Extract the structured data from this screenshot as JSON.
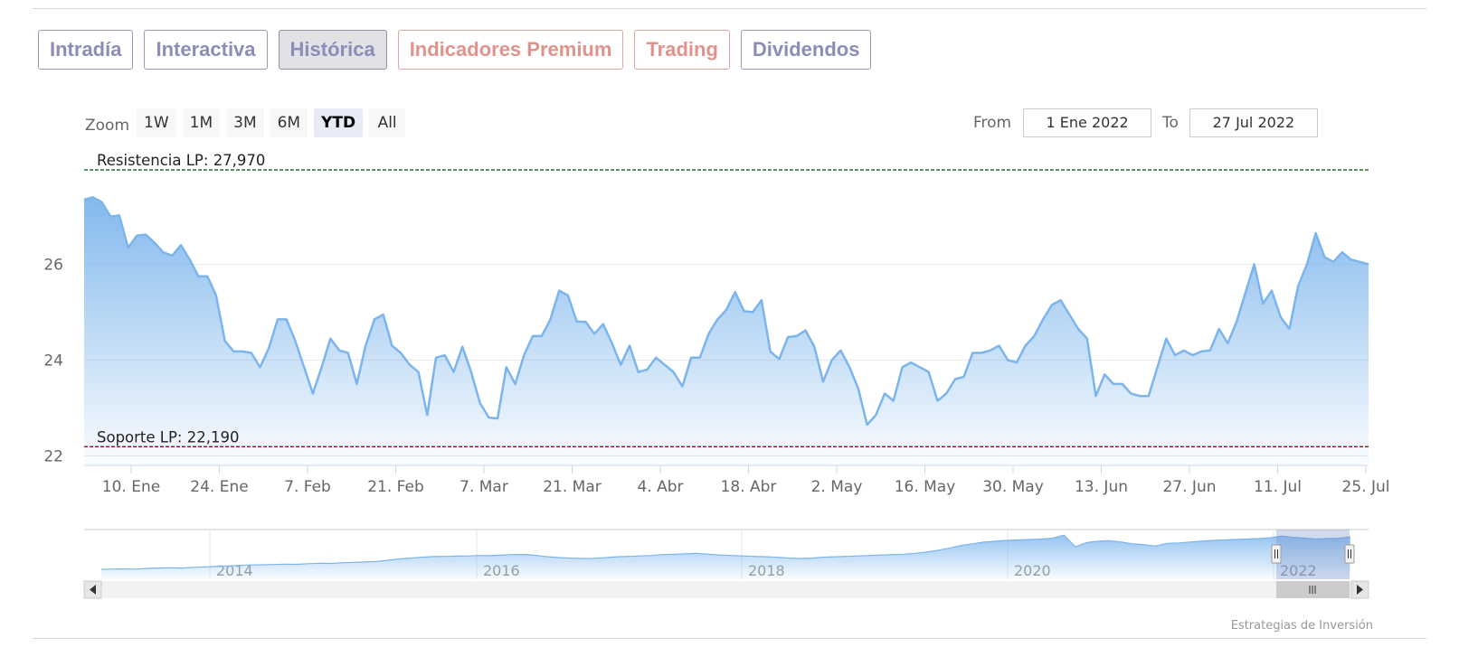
{
  "tabs": [
    {
      "label": "Intradía",
      "tone": "purple"
    },
    {
      "label": "Interactiva",
      "tone": "purple"
    },
    {
      "label": "Histórica",
      "tone": "purple",
      "active": true
    },
    {
      "label": "Indicadores Premium",
      "tone": "salmon"
    },
    {
      "label": "Trading",
      "tone": "salmon"
    },
    {
      "label": "Dividendos",
      "tone": "purple"
    }
  ],
  "zoom": {
    "label": "Zoom",
    "buttons": [
      "1W",
      "1M",
      "3M",
      "6M",
      "YTD",
      "All"
    ],
    "selected": "YTD"
  },
  "range": {
    "from_label": "From",
    "from_value": "1 Ene 2022",
    "to_label": "To",
    "to_value": "27 Jul 2022"
  },
  "credits": "Estrategias de Inversión",
  "colors": {
    "line": "#7cb5ec",
    "area_top": "#7cb5ec",
    "resistance": "#0f6b1c",
    "support": "#8a1111",
    "tab_purple": "#8c8cb8",
    "tab_salmon": "#e0938c"
  },
  "chart_data": {
    "type": "area",
    "title": "",
    "ylim": [
      21.8,
      28.5
    ],
    "y_ticks": [
      22,
      24,
      26
    ],
    "x_tick_labels": [
      "10. Ene",
      "24. Ene",
      "7. Feb",
      "21. Feb",
      "7. Mar",
      "21. Mar",
      "4. Abr",
      "18. Abr",
      "2. May",
      "16. May",
      "30. May",
      "13. Jun",
      "27. Jun",
      "11. Jul",
      "25. Jul"
    ],
    "grid": true,
    "plot_lines": [
      {
        "label": "Resistencia LP: 27,970",
        "value": 27.97,
        "style": "dashed",
        "color": "#0f6b1c"
      },
      {
        "label": "Soporte LP: 22,190",
        "value": 22.19,
        "style": "dashed",
        "color": "#8a1111"
      }
    ],
    "series": [
      {
        "values": [
          27.35,
          27.4,
          27.3,
          27.0,
          27.02,
          26.35,
          26.6,
          26.62,
          26.45,
          26.25,
          26.18,
          26.4,
          26.1,
          25.75,
          25.75,
          25.35,
          24.4,
          24.18,
          24.18,
          24.15,
          23.85,
          24.25,
          24.85,
          24.85,
          24.4,
          23.85,
          23.3,
          23.85,
          24.45,
          24.2,
          24.15,
          23.5,
          24.3,
          24.85,
          24.95,
          24.3,
          24.15,
          23.9,
          23.75,
          22.85,
          24.05,
          24.1,
          23.75,
          24.28,
          23.75,
          23.1,
          22.8,
          22.78,
          23.85,
          23.5,
          24.1,
          24.5,
          24.5,
          24.85,
          25.45,
          25.35,
          24.8,
          24.8,
          24.55,
          24.75,
          24.35,
          23.9,
          24.3,
          23.75,
          23.8,
          24.05,
          23.9,
          23.75,
          23.45,
          24.05,
          24.05,
          24.55,
          24.85,
          25.05,
          25.42,
          25.02,
          25.0,
          25.25,
          24.18,
          24.02,
          24.48,
          24.5,
          24.62,
          24.28,
          23.55,
          24.0,
          24.2,
          23.85,
          23.4,
          22.65,
          22.85,
          23.3,
          23.15,
          23.85,
          23.95,
          23.85,
          23.75,
          23.15,
          23.3,
          23.6,
          23.65,
          24.15,
          24.15,
          24.2,
          24.3,
          24.0,
          23.95,
          24.3,
          24.5,
          24.85,
          25.15,
          25.25,
          24.95,
          24.65,
          24.45,
          23.25,
          23.7,
          23.5,
          23.5,
          23.3,
          23.25,
          23.25,
          23.85,
          24.45,
          24.1,
          24.2,
          24.1,
          24.18,
          24.2,
          24.65,
          24.35,
          24.8,
          25.4,
          26.0,
          25.18,
          25.45,
          24.9,
          24.65,
          25.55,
          26.0,
          26.65,
          26.15,
          26.05,
          26.25,
          26.1,
          26.05,
          26.0
        ]
      }
    ]
  },
  "navigator": {
    "year_labels": [
      "2014",
      "2016",
      "2018",
      "2020",
      "2022"
    ],
    "values": [
      12.3,
      12.35,
      12.4,
      12.35,
      12.5,
      12.6,
      12.65,
      12.6,
      12.75,
      12.85,
      12.95,
      13.05,
      13.2,
      13.3,
      13.35,
      13.4,
      13.5,
      13.45,
      13.6,
      13.7,
      13.65,
      13.8,
      13.9,
      14.0,
      14.1,
      14.4,
      14.7,
      14.9,
      15.1,
      15.25,
      15.3,
      15.35,
      15.4,
      15.5,
      15.45,
      15.6,
      15.7,
      15.75,
      15.5,
      15.2,
      15.0,
      14.9,
      14.8,
      14.85,
      15.0,
      15.2,
      15.3,
      15.4,
      15.5,
      15.7,
      15.8,
      15.9,
      16.0,
      15.8,
      15.6,
      15.5,
      15.4,
      15.3,
      15.2,
      15.1,
      14.9,
      14.8,
      14.9,
      15.1,
      15.2,
      15.3,
      15.4,
      15.5,
      15.6,
      15.7,
      15.8,
      16.0,
      16.3,
      16.7,
      17.2,
      17.8,
      18.2,
      18.6,
      18.8,
      19.0,
      19.1,
      19.2,
      19.3,
      19.5,
      20.2,
      17.5,
      18.5,
      18.8,
      18.9,
      18.6,
      18.2,
      18.0,
      17.7,
      18.3,
      18.4,
      18.6,
      18.8,
      19.0,
      19.1,
      19.2,
      19.3,
      19.4,
      19.6,
      20.0,
      19.7,
      19.5,
      19.3,
      19.4,
      19.5,
      19.8
    ],
    "vmin": 10,
    "vmax": 21.5
  }
}
